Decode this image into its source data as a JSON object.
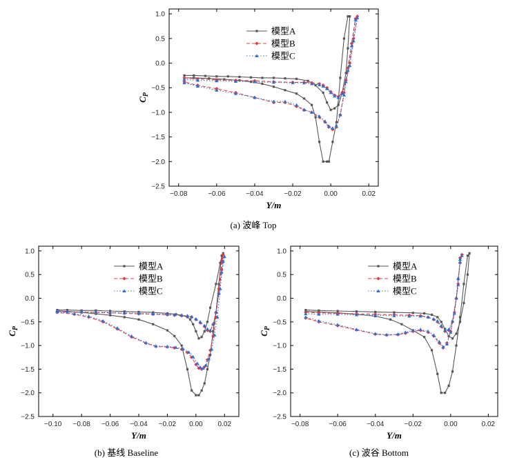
{
  "chart_data": [
    {
      "id": "top",
      "type": "line",
      "caption": "(a)  波峰 Top",
      "xlabel": "Y/m",
      "ylabel_main": "C",
      "ylabel_sub": "P",
      "xlim": [
        -0.085,
        0.025
      ],
      "ylim": [
        -2.5,
        1.1
      ],
      "xticks": [
        -0.08,
        -0.06,
        -0.04,
        -0.02,
        0.0,
        0.02
      ],
      "xtick_labels": [
        "−0.08",
        "−0.06",
        "−0.04",
        "−0.02",
        "0.00",
        "0.02"
      ],
      "yticks": [
        1.0,
        0.5,
        0.0,
        -0.5,
        -1.0,
        -1.5,
        -2.0,
        -2.5
      ],
      "ytick_labels": [
        "1.0",
        "0.5",
        "0.0",
        "−0.5",
        "−1.0",
        "−1.5",
        "−2.0",
        "−2.5"
      ],
      "legend": [
        "模型A",
        "模型B",
        "模型C"
      ],
      "series": [
        {
          "name": "模型A",
          "color": "#555555",
          "style": "solid-square",
          "x": [
            -0.077,
            -0.072,
            -0.066,
            -0.06,
            -0.054,
            -0.048,
            -0.042,
            -0.036,
            -0.03,
            -0.024,
            -0.018,
            -0.012,
            -0.008,
            -0.004,
            -0.002,
            0.0,
            0.002,
            0.004,
            0.006,
            0.008,
            0.009,
            0.01,
            0.009,
            0.007,
            0.005,
            0.003,
            0.001,
            -0.001,
            -0.002,
            -0.004,
            -0.006,
            -0.008,
            -0.01,
            -0.014,
            -0.018,
            -0.024,
            -0.03,
            -0.036,
            -0.042,
            -0.048,
            -0.056,
            -0.064,
            -0.072,
            -0.077
          ],
          "y": [
            -0.25,
            -0.25,
            -0.26,
            -0.27,
            -0.27,
            -0.28,
            -0.29,
            -0.3,
            -0.3,
            -0.31,
            -0.32,
            -0.36,
            -0.45,
            -0.6,
            -0.8,
            -0.95,
            -0.92,
            -0.85,
            -0.6,
            -0.2,
            0.3,
            0.95,
            0.95,
            0.5,
            -0.3,
            -1.2,
            -1.6,
            -2.0,
            -2.0,
            -2.0,
            -1.6,
            -1.1,
            -0.85,
            -0.72,
            -0.62,
            -0.55,
            -0.48,
            -0.42,
            -0.38,
            -0.35,
            -0.33,
            -0.31,
            -0.3,
            -0.3
          ]
        },
        {
          "name": "模型B",
          "color": "#e8383d",
          "style": "dash-diamond",
          "x": [
            -0.077,
            -0.07,
            -0.06,
            -0.05,
            -0.04,
            -0.03,
            -0.02,
            -0.014,
            -0.01,
            -0.006,
            -0.004,
            -0.002,
            0.0,
            0.002,
            0.004,
            0.006,
            0.008,
            0.01,
            0.012,
            0.014,
            0.013,
            0.011,
            0.009,
            0.007,
            0.005,
            0.003,
            0.001,
            -0.001,
            -0.003,
            -0.006,
            -0.01,
            -0.014,
            -0.018,
            -0.024,
            -0.03,
            -0.04,
            -0.05,
            -0.06,
            -0.07,
            -0.077
          ],
          "y": [
            -0.3,
            -0.32,
            -0.34,
            -0.35,
            -0.36,
            -0.38,
            -0.39,
            -0.39,
            -0.4,
            -0.42,
            -0.45,
            -0.5,
            -0.58,
            -0.65,
            -0.68,
            -0.6,
            -0.35,
            0.0,
            0.5,
            0.95,
            0.9,
            0.4,
            -0.1,
            -0.6,
            -1.05,
            -1.3,
            -1.35,
            -1.3,
            -1.2,
            -1.1,
            -1.0,
            -0.95,
            -0.88,
            -0.8,
            -0.8,
            -0.7,
            -0.6,
            -0.52,
            -0.45,
            -0.38
          ]
        },
        {
          "name": "模型C",
          "color": "#2a6fd6",
          "style": "dot-triangle",
          "x": [
            -0.077,
            -0.07,
            -0.06,
            -0.05,
            -0.04,
            -0.03,
            -0.02,
            -0.014,
            -0.01,
            -0.006,
            -0.004,
            -0.002,
            0.0,
            0.002,
            0.004,
            0.006,
            0.008,
            0.01,
            0.012,
            0.014,
            0.013,
            0.011,
            0.009,
            0.007,
            0.005,
            0.003,
            0.001,
            -0.001,
            -0.003,
            -0.006,
            -0.01,
            -0.014,
            -0.018,
            -0.024,
            -0.03,
            -0.04,
            -0.05,
            -0.06,
            -0.07,
            -0.077
          ],
          "y": [
            -0.33,
            -0.35,
            -0.36,
            -0.37,
            -0.38,
            -0.39,
            -0.4,
            -0.4,
            -0.42,
            -0.44,
            -0.47,
            -0.52,
            -0.6,
            -0.67,
            -0.7,
            -0.62,
            -0.38,
            -0.05,
            0.45,
            0.92,
            0.88,
            0.35,
            -0.15,
            -0.65,
            -1.05,
            -1.28,
            -1.32,
            -1.28,
            -1.18,
            -1.08,
            -1.0,
            -0.95,
            -0.85,
            -0.78,
            -0.78,
            -0.7,
            -0.62,
            -0.55,
            -0.47,
            -0.4
          ]
        }
      ]
    },
    {
      "id": "baseline",
      "type": "line",
      "caption": "(b)  基线 Baseline",
      "xlabel": "Y/m",
      "ylabel_main": "C",
      "ylabel_sub": "P",
      "xlim": [
        -0.11,
        0.03
      ],
      "ylim": [
        -2.5,
        1.1
      ],
      "xticks": [
        -0.1,
        -0.08,
        -0.06,
        -0.04,
        -0.02,
        0.0,
        0.02
      ],
      "xtick_labels": [
        "−0.10",
        "−0.08",
        "−0.06",
        "−0.04",
        "−0.02",
        "0.00",
        "0.02"
      ],
      "yticks": [
        1.0,
        0.5,
        0.0,
        -0.5,
        -1.0,
        -1.5,
        -2.0,
        -2.5
      ],
      "ytick_labels": [
        "1.0",
        "0.5",
        "0.0",
        "−0.5",
        "−1.0",
        "−1.5",
        "−2.0",
        "−2.5"
      ],
      "legend": [
        "模型A",
        "模型B",
        "模型C"
      ],
      "series": [
        {
          "name": "模型A",
          "color": "#555555",
          "style": "solid-square",
          "x": [
            -0.097,
            -0.09,
            -0.08,
            -0.07,
            -0.06,
            -0.05,
            -0.04,
            -0.03,
            -0.02,
            -0.014,
            -0.01,
            -0.006,
            -0.004,
            -0.002,
            0.0,
            0.002,
            0.004,
            0.006,
            0.008,
            0.01,
            0.014,
            0.017,
            0.019,
            0.018,
            0.016,
            0.014,
            0.012,
            0.01,
            0.008,
            0.006,
            0.004,
            0.002,
            0.0,
            -0.003,
            -0.006,
            -0.01,
            -0.015,
            -0.02,
            -0.03,
            -0.04,
            -0.05,
            -0.06,
            -0.07,
            -0.08,
            -0.09,
            -0.097
          ],
          "y": [
            -0.25,
            -0.25,
            -0.26,
            -0.26,
            -0.27,
            -0.28,
            -0.29,
            -0.3,
            -0.32,
            -0.34,
            -0.36,
            -0.4,
            -0.45,
            -0.55,
            -0.7,
            -0.85,
            -0.82,
            -0.7,
            -0.5,
            -0.2,
            0.3,
            0.75,
            0.95,
            0.9,
            0.3,
            -0.3,
            -0.7,
            -1.2,
            -1.5,
            -1.8,
            -1.95,
            -2.05,
            -2.05,
            -1.95,
            -1.5,
            -1.0,
            -0.8,
            -0.68,
            -0.55,
            -0.45,
            -0.4,
            -0.36,
            -0.33,
            -0.3,
            -0.28,
            -0.27
          ]
        },
        {
          "name": "模型B",
          "color": "#e8383d",
          "style": "dash-diamond",
          "x": [
            -0.097,
            -0.09,
            -0.08,
            -0.07,
            -0.06,
            -0.05,
            -0.04,
            -0.03,
            -0.02,
            -0.015,
            -0.01,
            -0.006,
            -0.003,
            0.0,
            0.003,
            0.006,
            0.008,
            0.01,
            0.012,
            0.014,
            0.016,
            0.018,
            0.019,
            0.018,
            0.016,
            0.014,
            0.012,
            0.01,
            0.008,
            0.006,
            0.004,
            0.002,
            0.0,
            -0.003,
            -0.006,
            -0.01,
            -0.015,
            -0.02,
            -0.028,
            -0.035,
            -0.045,
            -0.055,
            -0.065,
            -0.075,
            -0.085,
            -0.097
          ],
          "y": [
            -0.28,
            -0.29,
            -0.3,
            -0.3,
            -0.31,
            -0.32,
            -0.33,
            -0.34,
            -0.35,
            -0.36,
            -0.37,
            -0.38,
            -0.4,
            -0.45,
            -0.52,
            -0.6,
            -0.68,
            -0.7,
            -0.55,
            -0.3,
            0.1,
            0.6,
            0.92,
            0.8,
            0.2,
            -0.4,
            -0.8,
            -1.1,
            -1.3,
            -1.45,
            -1.5,
            -1.48,
            -1.4,
            -1.25,
            -1.15,
            -1.08,
            -1.05,
            -1.03,
            -1.02,
            -0.95,
            -0.82,
            -0.65,
            -0.5,
            -0.4,
            -0.34,
            -0.3
          ]
        },
        {
          "name": "模型C",
          "color": "#2a6fd6",
          "style": "dot-triangle",
          "x": [
            -0.097,
            -0.09,
            -0.08,
            -0.07,
            -0.06,
            -0.05,
            -0.04,
            -0.03,
            -0.02,
            -0.015,
            -0.01,
            -0.006,
            -0.003,
            0.0,
            0.003,
            0.006,
            0.008,
            0.01,
            0.012,
            0.014,
            0.016,
            0.018,
            0.02,
            0.019,
            0.017,
            0.015,
            0.013,
            0.011,
            0.009,
            0.007,
            0.005,
            0.003,
            0.001,
            -0.002,
            -0.005,
            -0.009,
            -0.014,
            -0.02,
            -0.028,
            -0.035,
            -0.045,
            -0.055,
            -0.065,
            -0.075,
            -0.085,
            -0.097
          ],
          "y": [
            -0.27,
            -0.28,
            -0.29,
            -0.29,
            -0.3,
            -0.31,
            -0.32,
            -0.33,
            -0.34,
            -0.35,
            -0.36,
            -0.37,
            -0.39,
            -0.44,
            -0.5,
            -0.58,
            -0.65,
            -0.68,
            -0.55,
            -0.3,
            0.1,
            0.55,
            0.88,
            0.78,
            0.2,
            -0.4,
            -0.78,
            -1.08,
            -1.28,
            -1.42,
            -1.48,
            -1.46,
            -1.38,
            -1.24,
            -1.14,
            -1.07,
            -1.04,
            -1.02,
            -1.01,
            -0.94,
            -0.8,
            -0.63,
            -0.48,
            -0.38,
            -0.33,
            -0.29
          ]
        }
      ]
    },
    {
      "id": "bottom",
      "type": "line",
      "caption": "(c)  波谷 Bottom",
      "xlabel": "Y/m",
      "ylabel_main": "C",
      "ylabel_sub": "P",
      "xlim": [
        -0.085,
        0.025
      ],
      "ylim": [
        -2.5,
        1.1
      ],
      "xticks": [
        -0.08,
        -0.06,
        -0.04,
        -0.02,
        0.0,
        0.02
      ],
      "xtick_labels": [
        "−0.08",
        "−0.06",
        "−0.04",
        "−0.02",
        "0.00",
        "0.02"
      ],
      "yticks": [
        1.0,
        0.5,
        0.0,
        -0.5,
        -1.0,
        -1.5,
        -2.0,
        -2.5
      ],
      "ytick_labels": [
        "1.0",
        "0.5",
        "0.0",
        "−0.5",
        "−1.0",
        "−1.5",
        "−2.0",
        "−2.5"
      ],
      "legend": [
        "模型A",
        "模型B",
        "模型C"
      ],
      "series": [
        {
          "name": "模型A",
          "color": "#555555",
          "style": "solid-square",
          "x": [
            -0.077,
            -0.07,
            -0.06,
            -0.05,
            -0.04,
            -0.03,
            -0.02,
            -0.014,
            -0.01,
            -0.007,
            -0.005,
            -0.003,
            -0.001,
            0.001,
            0.003,
            0.005,
            0.007,
            0.009,
            0.01,
            0.009,
            0.007,
            0.005,
            0.003,
            0.001,
            -0.001,
            -0.003,
            -0.005,
            -0.007,
            -0.01,
            -0.014,
            -0.02,
            -0.026,
            -0.032,
            -0.04,
            -0.05,
            -0.06,
            -0.07,
            -0.077
          ],
          "y": [
            -0.25,
            -0.26,
            -0.27,
            -0.28,
            -0.29,
            -0.3,
            -0.31,
            -0.32,
            -0.35,
            -0.4,
            -0.5,
            -0.65,
            -0.8,
            -0.85,
            -0.75,
            -0.5,
            -0.1,
            0.5,
            0.95,
            0.9,
            0.3,
            -0.4,
            -1.0,
            -1.55,
            -1.85,
            -2.0,
            -2.0,
            -1.6,
            -1.1,
            -0.82,
            -0.68,
            -0.55,
            -0.45,
            -0.38,
            -0.34,
            -0.31,
            -0.29,
            -0.28
          ]
        },
        {
          "name": "模型B",
          "color": "#e8383d",
          "style": "dash-diamond",
          "x": [
            -0.077,
            -0.07,
            -0.06,
            -0.05,
            -0.04,
            -0.03,
            -0.022,
            -0.016,
            -0.012,
            -0.009,
            -0.007,
            -0.005,
            -0.003,
            -0.001,
            0.001,
            0.003,
            0.004,
            0.005,
            0.006,
            0.005,
            0.004,
            0.002,
            0.0,
            -0.002,
            -0.004,
            -0.006,
            -0.009,
            -0.012,
            -0.016,
            -0.02,
            -0.024,
            -0.028,
            -0.034,
            -0.04,
            -0.05,
            -0.06,
            -0.07,
            -0.077
          ],
          "y": [
            -0.3,
            -0.31,
            -0.32,
            -0.33,
            -0.34,
            -0.35,
            -0.36,
            -0.37,
            -0.4,
            -0.45,
            -0.5,
            -0.6,
            -0.7,
            -0.68,
            -0.5,
            0.0,
            0.4,
            0.75,
            0.92,
            0.85,
            0.3,
            -0.3,
            -0.7,
            -0.95,
            -1.05,
            -0.95,
            -0.8,
            -0.72,
            -0.68,
            -0.7,
            -0.74,
            -0.77,
            -0.78,
            -0.76,
            -0.67,
            -0.58,
            -0.5,
            -0.42
          ]
        },
        {
          "name": "模型C",
          "color": "#2a6fd6",
          "style": "dot-triangle",
          "x": [
            -0.077,
            -0.07,
            -0.06,
            -0.05,
            -0.04,
            -0.03,
            -0.022,
            -0.016,
            -0.012,
            -0.009,
            -0.007,
            -0.005,
            -0.003,
            -0.001,
            0.001,
            0.003,
            0.004,
            0.005,
            0.006,
            0.005,
            0.004,
            0.002,
            0.0,
            -0.002,
            -0.004,
            -0.006,
            -0.009,
            -0.012,
            -0.016,
            -0.02,
            -0.024,
            -0.028,
            -0.034,
            -0.04,
            -0.05,
            -0.06,
            -0.07,
            -0.077
          ],
          "y": [
            -0.33,
            -0.34,
            -0.34,
            -0.35,
            -0.36,
            -0.37,
            -0.38,
            -0.38,
            -0.4,
            -0.44,
            -0.48,
            -0.58,
            -0.68,
            -0.66,
            -0.48,
            0.0,
            0.42,
            0.76,
            0.9,
            0.82,
            0.28,
            -0.32,
            -0.72,
            -0.97,
            -1.03,
            -0.92,
            -0.78,
            -0.7,
            -0.66,
            -0.68,
            -0.72,
            -0.76,
            -0.77,
            -0.75,
            -0.66,
            -0.56,
            -0.48,
            -0.4
          ]
        }
      ]
    }
  ]
}
